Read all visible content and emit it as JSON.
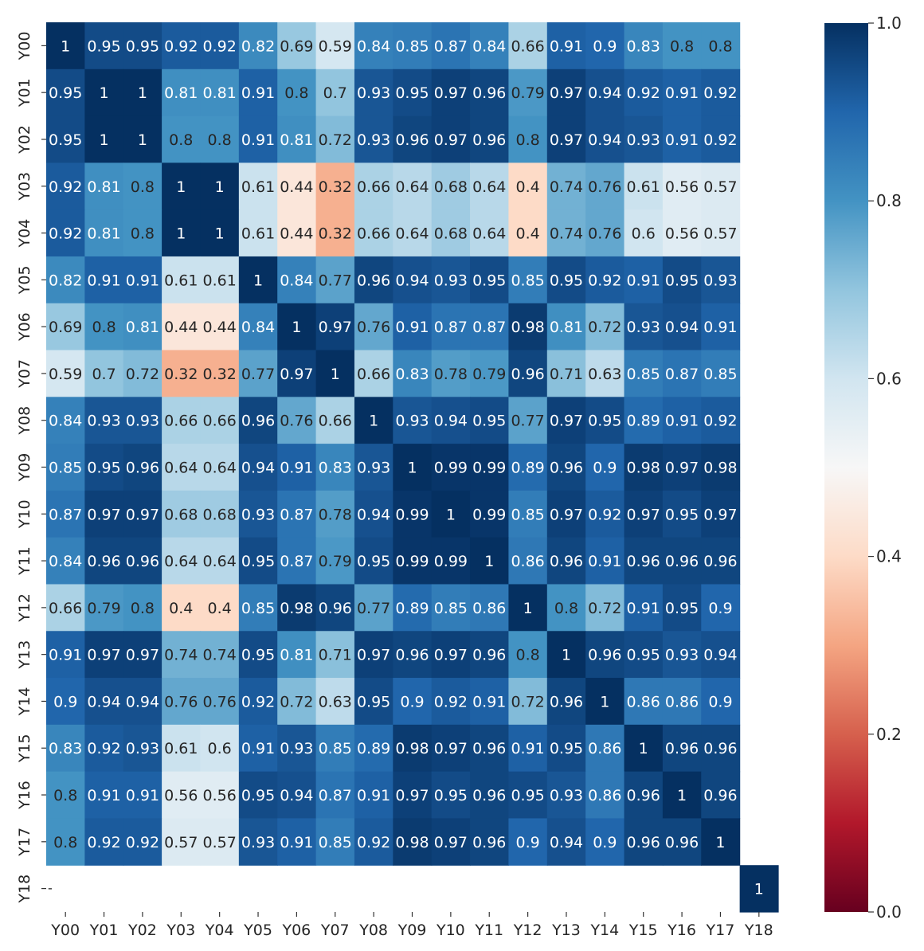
{
  "chart_data": {
    "type": "heatmap",
    "title": "",
    "xlabel": "",
    "ylabel": "",
    "x_labels": [
      "Y00",
      "Y01",
      "Y02",
      "Y03",
      "Y04",
      "Y05",
      "Y06",
      "Y07",
      "Y08",
      "Y09",
      "Y10",
      "Y11",
      "Y12",
      "Y13",
      "Y14",
      "Y15",
      "Y16",
      "Y17",
      "Y18"
    ],
    "y_labels": [
      "Y00",
      "Y01",
      "Y02",
      "Y03",
      "Y04",
      "Y05",
      "Y06",
      "Y07",
      "Y08",
      "Y09",
      "Y10",
      "Y11",
      "Y12",
      "Y13",
      "Y14",
      "Y15",
      "Y16",
      "Y17",
      "Y18"
    ],
    "values": [
      [
        1,
        0.95,
        0.95,
        0.92,
        0.92,
        0.82,
        0.69,
        0.59,
        0.84,
        0.85,
        0.87,
        0.84,
        0.66,
        0.91,
        0.9,
        0.83,
        0.8,
        0.8,
        null
      ],
      [
        0.95,
        1,
        1,
        0.81,
        0.81,
        0.91,
        0.8,
        0.7,
        0.93,
        0.95,
        0.97,
        0.96,
        0.79,
        0.97,
        0.94,
        0.92,
        0.91,
        0.92,
        null
      ],
      [
        0.95,
        1,
        1,
        0.8,
        0.8,
        0.91,
        0.81,
        0.72,
        0.93,
        0.96,
        0.97,
        0.96,
        0.8,
        0.97,
        0.94,
        0.93,
        0.91,
        0.92,
        null
      ],
      [
        0.92,
        0.81,
        0.8,
        1,
        1,
        0.61,
        0.44,
        0.32,
        0.66,
        0.64,
        0.68,
        0.64,
        0.4,
        0.74,
        0.76,
        0.61,
        0.56,
        0.57,
        null
      ],
      [
        0.92,
        0.81,
        0.8,
        1,
        1,
        0.61,
        0.44,
        0.32,
        0.66,
        0.64,
        0.68,
        0.64,
        0.4,
        0.74,
        0.76,
        0.6,
        0.56,
        0.57,
        null
      ],
      [
        0.82,
        0.91,
        0.91,
        0.61,
        0.61,
        1,
        0.84,
        0.77,
        0.96,
        0.94,
        0.93,
        0.95,
        0.85,
        0.95,
        0.92,
        0.91,
        0.95,
        0.93,
        null
      ],
      [
        0.69,
        0.8,
        0.81,
        0.44,
        0.44,
        0.84,
        1,
        0.97,
        0.76,
        0.91,
        0.87,
        0.87,
        0.98,
        0.81,
        0.72,
        0.93,
        0.94,
        0.91,
        null
      ],
      [
        0.59,
        0.7,
        0.72,
        0.32,
        0.32,
        0.77,
        0.97,
        1,
        0.66,
        0.83,
        0.78,
        0.79,
        0.96,
        0.71,
        0.63,
        0.85,
        0.87,
        0.85,
        null
      ],
      [
        0.84,
        0.93,
        0.93,
        0.66,
        0.66,
        0.96,
        0.76,
        0.66,
        1,
        0.93,
        0.94,
        0.95,
        0.77,
        0.97,
        0.95,
        0.89,
        0.91,
        0.92,
        null
      ],
      [
        0.85,
        0.95,
        0.96,
        0.64,
        0.64,
        0.94,
        0.91,
        0.83,
        0.93,
        1,
        0.99,
        0.99,
        0.89,
        0.96,
        0.9,
        0.98,
        0.97,
        0.98,
        null
      ],
      [
        0.87,
        0.97,
        0.97,
        0.68,
        0.68,
        0.93,
        0.87,
        0.78,
        0.94,
        0.99,
        1,
        0.99,
        0.85,
        0.97,
        0.92,
        0.97,
        0.95,
        0.97,
        null
      ],
      [
        0.84,
        0.96,
        0.96,
        0.64,
        0.64,
        0.95,
        0.87,
        0.79,
        0.95,
        0.99,
        0.99,
        1,
        0.86,
        0.96,
        0.91,
        0.96,
        0.96,
        0.96,
        null
      ],
      [
        0.66,
        0.79,
        0.8,
        0.4,
        0.4,
        0.85,
        0.98,
        0.96,
        0.77,
        0.89,
        0.85,
        0.86,
        1,
        0.8,
        0.72,
        0.91,
        0.95,
        0.9,
        null
      ],
      [
        0.91,
        0.97,
        0.97,
        0.74,
        0.74,
        0.95,
        0.81,
        0.71,
        0.97,
        0.96,
        0.97,
        0.96,
        0.8,
        1,
        0.96,
        0.95,
        0.93,
        0.94,
        null
      ],
      [
        0.9,
        0.94,
        0.94,
        0.76,
        0.76,
        0.92,
        0.72,
        0.63,
        0.95,
        0.9,
        0.92,
        0.91,
        0.72,
        0.96,
        1,
        0.86,
        0.86,
        0.9,
        null
      ],
      [
        0.83,
        0.92,
        0.93,
        0.61,
        0.6,
        0.91,
        0.93,
        0.85,
        0.89,
        0.98,
        0.97,
        0.96,
        0.91,
        0.95,
        0.86,
        1,
        0.96,
        0.96,
        null
      ],
      [
        0.8,
        0.91,
        0.91,
        0.56,
        0.56,
        0.95,
        0.94,
        0.87,
        0.91,
        0.97,
        0.95,
        0.96,
        0.95,
        0.93,
        0.86,
        0.96,
        1,
        0.96,
        null
      ],
      [
        0.8,
        0.92,
        0.92,
        0.57,
        0.57,
        0.93,
        0.91,
        0.85,
        0.92,
        0.98,
        0.97,
        0.96,
        0.9,
        0.94,
        0.9,
        0.96,
        0.96,
        1,
        null
      ],
      [
        null,
        null,
        null,
        null,
        null,
        null,
        null,
        null,
        null,
        null,
        null,
        null,
        null,
        null,
        null,
        null,
        null,
        null,
        1
      ]
    ],
    "colormap": "RdBu",
    "vmin": 0.0,
    "vmax": 1.0,
    "colorbar": {
      "ticks": [
        0.0,
        0.2,
        0.4,
        0.6,
        0.8,
        1.0
      ],
      "tick_labels": [
        "0.0",
        "0.2",
        "0.4",
        "0.6",
        "0.8",
        "1.0"
      ]
    },
    "annotated": true,
    "y18_row_first_tick_label": "-"
  }
}
